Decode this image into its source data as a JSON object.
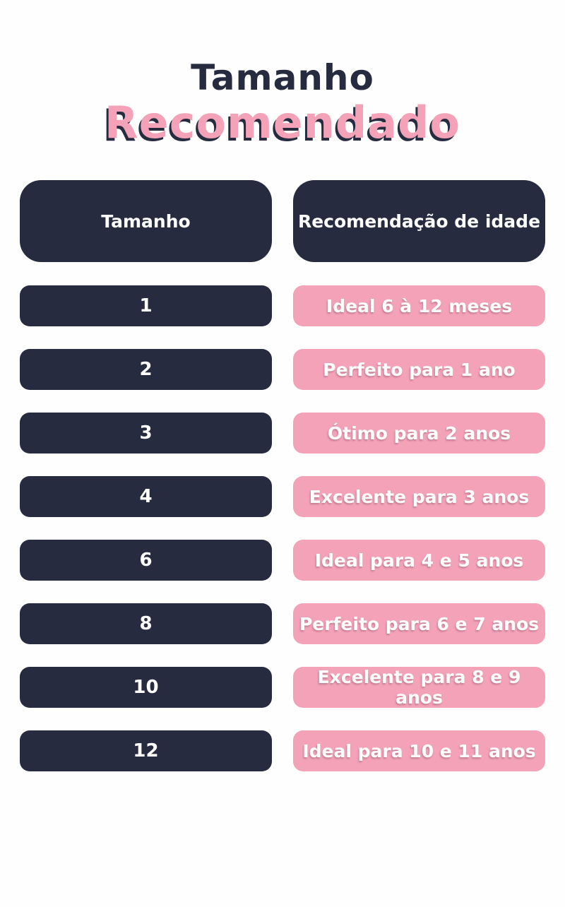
{
  "title": {
    "line1": "Tamanho",
    "line2": "Recomendado"
  },
  "chart_data": {
    "type": "table",
    "title": "Tamanho Recomendado",
    "columns": [
      "Tamanho",
      "Recomendação de idade"
    ],
    "rows": [
      [
        "1",
        "Ideal 6 à 12 meses"
      ],
      [
        "2",
        "Perfeito para 1 ano"
      ],
      [
        "3",
        "Ótimo para 2 anos"
      ],
      [
        "4",
        "Excelente para 3 anos"
      ],
      [
        "6",
        "Ideal para 4 e 5 anos"
      ],
      [
        "8",
        "Perfeito para 6 e 7 anos"
      ],
      [
        "10",
        "Excelente para 8 e 9 anos"
      ],
      [
        "12",
        "Ideal para 10 e 11 anos"
      ]
    ]
  },
  "colors": {
    "navy": "#262b40",
    "pink": "#f3a2b8",
    "background": "#fefefe",
    "text_light": "#ffffff"
  }
}
